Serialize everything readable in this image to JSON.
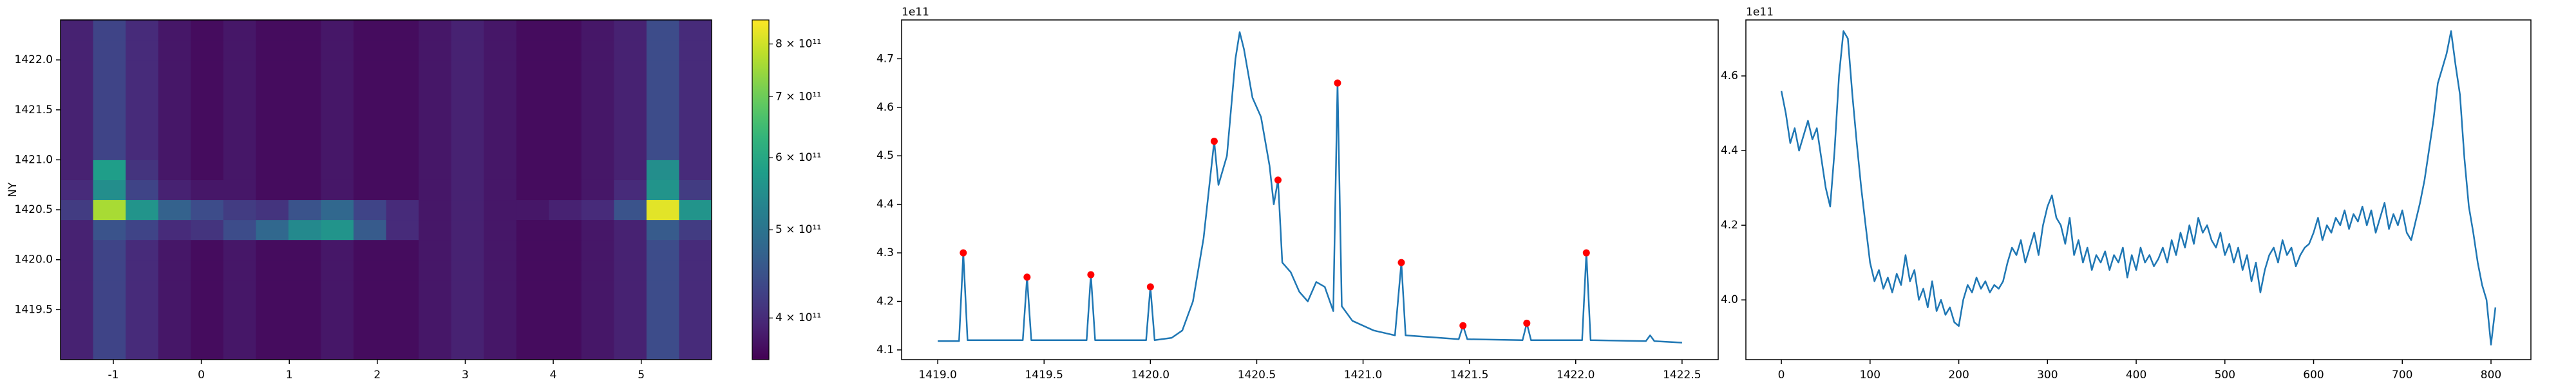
{
  "chart_data": [
    {
      "type": "heatmap",
      "ylabel": "NY",
      "x_edges": [
        -1.6,
        -1.23,
        -0.86,
        -0.49,
        -0.12,
        0.25,
        0.62,
        0.99,
        1.36,
        1.73,
        2.1,
        2.47,
        2.84,
        3.21,
        3.58,
        3.95,
        4.32,
        4.69,
        5.06,
        5.43,
        5.8
      ],
      "y_edges": [
        1419.0,
        1419.2,
        1419.4,
        1419.6,
        1419.8,
        1420.0,
        1420.2,
        1420.4,
        1420.6,
        1420.8,
        1421.0,
        1421.2,
        1421.4,
        1421.6,
        1421.8,
        1422.0,
        1422.2,
        1422.4
      ],
      "z": [
        [
          390000000000.0,
          430000000000.0,
          400000000000.0,
          380000000000.0,
          370000000000.0,
          380000000000.0,
          370000000000.0,
          370000000000.0,
          380000000000.0,
          370000000000.0,
          370000000000.0,
          380000000000.0,
          390000000000.0,
          380000000000.0,
          370000000000.0,
          370000000000.0,
          380000000000.0,
          390000000000.0,
          440000000000.0,
          400000000000.0
        ],
        [
          390000000000.0,
          430000000000.0,
          400000000000.0,
          380000000000.0,
          370000000000.0,
          380000000000.0,
          370000000000.0,
          370000000000.0,
          380000000000.0,
          370000000000.0,
          370000000000.0,
          380000000000.0,
          390000000000.0,
          380000000000.0,
          370000000000.0,
          370000000000.0,
          380000000000.0,
          390000000000.0,
          440000000000.0,
          400000000000.0
        ],
        [
          390000000000.0,
          430000000000.0,
          400000000000.0,
          380000000000.0,
          370000000000.0,
          380000000000.0,
          370000000000.0,
          370000000000.0,
          380000000000.0,
          370000000000.0,
          370000000000.0,
          380000000000.0,
          390000000000.0,
          380000000000.0,
          370000000000.0,
          370000000000.0,
          380000000000.0,
          390000000000.0,
          440000000000.0,
          400000000000.0
        ],
        [
          390000000000.0,
          430000000000.0,
          400000000000.0,
          380000000000.0,
          370000000000.0,
          380000000000.0,
          370000000000.0,
          370000000000.0,
          380000000000.0,
          370000000000.0,
          370000000000.0,
          380000000000.0,
          390000000000.0,
          380000000000.0,
          370000000000.0,
          370000000000.0,
          380000000000.0,
          390000000000.0,
          440000000000.0,
          400000000000.0
        ],
        [
          390000000000.0,
          430000000000.0,
          400000000000.0,
          380000000000.0,
          370000000000.0,
          380000000000.0,
          370000000000.0,
          370000000000.0,
          380000000000.0,
          370000000000.0,
          370000000000.0,
          380000000000.0,
          390000000000.0,
          380000000000.0,
          370000000000.0,
          370000000000.0,
          380000000000.0,
          390000000000.0,
          440000000000.0,
          400000000000.0
        ],
        [
          390000000000.0,
          430000000000.0,
          400000000000.0,
          380000000000.0,
          370000000000.0,
          380000000000.0,
          370000000000.0,
          370000000000.0,
          380000000000.0,
          370000000000.0,
          370000000000.0,
          380000000000.0,
          390000000000.0,
          380000000000.0,
          370000000000.0,
          370000000000.0,
          380000000000.0,
          390000000000.0,
          440000000000.0,
          400000000000.0
        ],
        [
          390000000000.0,
          450000000000.0,
          430000000000.0,
          400000000000.0,
          410000000000.0,
          440000000000.0,
          480000000000.0,
          540000000000.0,
          560000000000.0,
          460000000000.0,
          400000000000.0,
          380000000000.0,
          390000000000.0,
          380000000000.0,
          370000000000.0,
          370000000000.0,
          380000000000.0,
          390000000000.0,
          460000000000.0,
          420000000000.0
        ],
        [
          420000000000.0,
          760000000000.0,
          560000000000.0,
          470000000000.0,
          440000000000.0,
          420000000000.0,
          410000000000.0,
          450000000000.0,
          480000000000.0,
          430000000000.0,
          400000000000.0,
          380000000000.0,
          390000000000.0,
          380000000000.0,
          380000000000.0,
          390000000000.0,
          400000000000.0,
          450000000000.0,
          820000000000.0,
          560000000000.0
        ],
        [
          400000000000.0,
          550000000000.0,
          430000000000.0,
          390000000000.0,
          380000000000.0,
          380000000000.0,
          370000000000.0,
          370000000000.0,
          380000000000.0,
          370000000000.0,
          370000000000.0,
          380000000000.0,
          390000000000.0,
          380000000000.0,
          370000000000.0,
          370000000000.0,
          380000000000.0,
          400000000000.0,
          560000000000.0,
          420000000000.0
        ],
        [
          390000000000.0,
          580000000000.0,
          410000000000.0,
          380000000000.0,
          370000000000.0,
          380000000000.0,
          370000000000.0,
          370000000000.0,
          380000000000.0,
          370000000000.0,
          370000000000.0,
          380000000000.0,
          390000000000.0,
          380000000000.0,
          370000000000.0,
          370000000000.0,
          380000000000.0,
          390000000000.0,
          550000000000.0,
          400000000000.0
        ],
        [
          390000000000.0,
          430000000000.0,
          400000000000.0,
          380000000000.0,
          370000000000.0,
          380000000000.0,
          370000000000.0,
          370000000000.0,
          380000000000.0,
          370000000000.0,
          370000000000.0,
          380000000000.0,
          390000000000.0,
          380000000000.0,
          370000000000.0,
          370000000000.0,
          380000000000.0,
          390000000000.0,
          440000000000.0,
          400000000000.0
        ],
        [
          390000000000.0,
          430000000000.0,
          400000000000.0,
          380000000000.0,
          370000000000.0,
          380000000000.0,
          370000000000.0,
          370000000000.0,
          380000000000.0,
          370000000000.0,
          370000000000.0,
          380000000000.0,
          390000000000.0,
          380000000000.0,
          370000000000.0,
          370000000000.0,
          380000000000.0,
          390000000000.0,
          440000000000.0,
          400000000000.0
        ],
        [
          390000000000.0,
          430000000000.0,
          400000000000.0,
          380000000000.0,
          370000000000.0,
          380000000000.0,
          370000000000.0,
          370000000000.0,
          380000000000.0,
          370000000000.0,
          370000000000.0,
          380000000000.0,
          390000000000.0,
          380000000000.0,
          370000000000.0,
          370000000000.0,
          380000000000.0,
          390000000000.0,
          440000000000.0,
          400000000000.0
        ],
        [
          390000000000.0,
          430000000000.0,
          400000000000.0,
          380000000000.0,
          370000000000.0,
          380000000000.0,
          370000000000.0,
          370000000000.0,
          380000000000.0,
          370000000000.0,
          370000000000.0,
          380000000000.0,
          390000000000.0,
          380000000000.0,
          370000000000.0,
          370000000000.0,
          380000000000.0,
          390000000000.0,
          440000000000.0,
          400000000000.0
        ],
        [
          390000000000.0,
          430000000000.0,
          400000000000.0,
          380000000000.0,
          370000000000.0,
          380000000000.0,
          370000000000.0,
          370000000000.0,
          380000000000.0,
          370000000000.0,
          370000000000.0,
          380000000000.0,
          390000000000.0,
          380000000000.0,
          370000000000.0,
          370000000000.0,
          380000000000.0,
          390000000000.0,
          440000000000.0,
          400000000000.0
        ],
        [
          390000000000.0,
          430000000000.0,
          400000000000.0,
          380000000000.0,
          370000000000.0,
          380000000000.0,
          370000000000.0,
          370000000000.0,
          380000000000.0,
          370000000000.0,
          370000000000.0,
          380000000000.0,
          390000000000.0,
          380000000000.0,
          370000000000.0,
          370000000000.0,
          380000000000.0,
          390000000000.0,
          440000000000.0,
          400000000000.0
        ],
        [
          390000000000.0,
          430000000000.0,
          400000000000.0,
          380000000000.0,
          370000000000.0,
          380000000000.0,
          370000000000.0,
          370000000000.0,
          380000000000.0,
          370000000000.0,
          370000000000.0,
          380000000000.0,
          390000000000.0,
          380000000000.0,
          370000000000.0,
          370000000000.0,
          380000000000.0,
          390000000000.0,
          440000000000.0,
          400000000000.0
        ]
      ],
      "xlim": [
        -1.6,
        5.8
      ],
      "ylim": [
        1419.0,
        1422.4
      ],
      "xticks": [
        -1,
        0,
        1,
        2,
        3,
        4,
        5
      ],
      "yticks": [
        1419.5,
        {
          "value": 1420.0,
          "label": "1420.0"
        },
        1420.5,
        {
          "value": 1421.0,
          "label": "1421.0"
        },
        1421.5,
        {
          "value": 1422.0,
          "label": "1422.0"
        }
      ],
      "colormap": "viridis",
      "color_log": true,
      "clim": [
        360000000000.0,
        850000000000.0
      ],
      "cticks": [
        {
          "value": 400000000000.0,
          "label": "4 × 10¹¹"
        },
        {
          "value": 500000000000.0,
          "label": "5 × 10¹¹"
        },
        {
          "value": 600000000000.0,
          "label": "6 × 10¹¹"
        },
        {
          "value": 700000000000.0,
          "label": "7 × 10¹¹"
        },
        {
          "value": 800000000000.0,
          "label": "8 × 10¹¹"
        }
      ]
    },
    {
      "type": "line",
      "offset_text": "1e11",
      "x": [
        1419.0,
        1419.1,
        1419.12,
        1419.14,
        1419.4,
        1419.42,
        1419.44,
        1419.7,
        1419.72,
        1419.74,
        1419.98,
        1420.0,
        1420.02,
        1420.1,
        1420.15,
        1420.2,
        1420.25,
        1420.3,
        1420.32,
        1420.36,
        1420.4,
        1420.42,
        1420.44,
        1420.48,
        1420.52,
        1420.56,
        1420.58,
        1420.6,
        1420.62,
        1420.66,
        1420.7,
        1420.74,
        1420.78,
        1420.82,
        1420.86,
        1420.88,
        1420.9,
        1420.95,
        1421.05,
        1421.15,
        1421.18,
        1421.2,
        1421.45,
        1421.47,
        1421.49,
        1421.75,
        1421.77,
        1421.79,
        1422.03,
        1422.05,
        1422.07,
        1422.33,
        1422.35,
        1422.37,
        1422.5
      ],
      "series": [
        {
          "color": "#1f77b4",
          "values": [
            4.118,
            4.118,
            4.3,
            4.12,
            4.12,
            4.25,
            4.12,
            4.12,
            4.255,
            4.12,
            4.12,
            4.23,
            4.12,
            4.125,
            4.14,
            4.2,
            4.33,
            4.53,
            4.44,
            4.5,
            4.7,
            4.755,
            4.72,
            4.62,
            4.58,
            4.48,
            4.4,
            4.45,
            4.28,
            4.26,
            4.22,
            4.2,
            4.24,
            4.23,
            4.18,
            4.65,
            4.19,
            4.16,
            4.14,
            4.13,
            4.28,
            4.13,
            4.122,
            4.15,
            4.122,
            4.12,
            4.155,
            4.12,
            4.12,
            4.3,
            4.12,
            4.118,
            4.13,
            4.118,
            4.115
          ]
        }
      ],
      "peaks": {
        "color": "#ff0000",
        "x": [
          1419.12,
          1419.42,
          1419.72,
          1420.0,
          1420.3,
          1420.6,
          1420.88,
          1421.18,
          1421.47,
          1421.77,
          1422.05
        ],
        "values": [
          4.3,
          4.25,
          4.255,
          4.23,
          4.53,
          4.45,
          4.65,
          4.28,
          4.15,
          4.155,
          4.3
        ]
      },
      "xlim": [
        1418.83,
        1422.67
      ],
      "ylim": [
        4.08,
        4.78
      ],
      "xticks": [
        {
          "value": 1419.0,
          "label": "1419.0"
        },
        1419.5,
        {
          "value": 1420.0,
          "label": "1420.0"
        },
        1420.5,
        {
          "value": 1421.0,
          "label": "1421.0"
        },
        1421.5,
        {
          "value": 1422.0,
          "label": "1422.0"
        },
        1422.5
      ],
      "yticks": [
        4.1,
        4.2,
        4.3,
        4.4,
        4.5,
        4.6,
        4.7
      ]
    },
    {
      "type": "line",
      "offset_text": "1e11",
      "x": [
        0,
        5,
        10,
        15,
        20,
        25,
        30,
        35,
        40,
        45,
        50,
        55,
        60,
        65,
        70,
        75,
        80,
        85,
        90,
        95,
        100,
        105,
        110,
        115,
        120,
        125,
        130,
        135,
        140,
        145,
        150,
        155,
        160,
        165,
        170,
        175,
        180,
        185,
        190,
        195,
        200,
        205,
        210,
        215,
        220,
        225,
        230,
        235,
        240,
        245,
        250,
        255,
        260,
        265,
        270,
        275,
        280,
        285,
        290,
        295,
        300,
        305,
        310,
        315,
        320,
        325,
        330,
        335,
        340,
        345,
        350,
        355,
        360,
        365,
        370,
        375,
        380,
        385,
        390,
        395,
        400,
        405,
        410,
        415,
        420,
        425,
        430,
        435,
        440,
        445,
        450,
        455,
        460,
        465,
        470,
        475,
        480,
        485,
        490,
        495,
        500,
        505,
        510,
        515,
        520,
        525,
        530,
        535,
        540,
        545,
        550,
        555,
        560,
        565,
        570,
        575,
        580,
        585,
        590,
        595,
        600,
        605,
        610,
        615,
        620,
        625,
        630,
        635,
        640,
        645,
        650,
        655,
        660,
        665,
        670,
        675,
        680,
        685,
        690,
        695,
        700,
        705,
        710,
        715,
        720,
        725,
        730,
        735,
        740,
        745,
        750,
        755,
        760,
        765,
        770,
        775,
        780,
        785,
        790,
        795,
        800,
        805
      ],
      "series": [
        {
          "color": "#1f77b4",
          "values": [
            4.56,
            4.5,
            4.42,
            4.46,
            4.4,
            4.44,
            4.48,
            4.43,
            4.46,
            4.38,
            4.3,
            4.25,
            4.4,
            4.6,
            4.72,
            4.7,
            4.55,
            4.42,
            4.3,
            4.2,
            4.1,
            4.05,
            4.08,
            4.03,
            4.06,
            4.02,
            4.07,
            4.04,
            4.12,
            4.05,
            4.08,
            4.0,
            4.03,
            3.98,
            4.05,
            3.97,
            4.0,
            3.96,
            3.98,
            3.94,
            3.93,
            4.0,
            4.04,
            4.02,
            4.06,
            4.03,
            4.05,
            4.02,
            4.04,
            4.03,
            4.05,
            4.1,
            4.14,
            4.12,
            4.16,
            4.1,
            4.14,
            4.18,
            4.12,
            4.2,
            4.25,
            4.28,
            4.22,
            4.2,
            4.15,
            4.22,
            4.12,
            4.16,
            4.1,
            4.14,
            4.08,
            4.12,
            4.1,
            4.13,
            4.08,
            4.12,
            4.1,
            4.14,
            4.06,
            4.12,
            4.08,
            4.14,
            4.1,
            4.12,
            4.09,
            4.11,
            4.14,
            4.1,
            4.16,
            4.12,
            4.18,
            4.14,
            4.2,
            4.15,
            4.22,
            4.18,
            4.2,
            4.16,
            4.14,
            4.18,
            4.12,
            4.15,
            4.1,
            4.14,
            4.08,
            4.12,
            4.05,
            4.1,
            4.02,
            4.08,
            4.12,
            4.14,
            4.1,
            4.16,
            4.12,
            4.14,
            4.09,
            4.12,
            4.14,
            4.15,
            4.18,
            4.22,
            4.16,
            4.2,
            4.18,
            4.22,
            4.2,
            4.24,
            4.19,
            4.23,
            4.21,
            4.25,
            4.2,
            4.24,
            4.18,
            4.22,
            4.26,
            4.19,
            4.23,
            4.2,
            4.24,
            4.18,
            4.16,
            4.21,
            4.26,
            4.32,
            4.4,
            4.48,
            4.58,
            4.62,
            4.66,
            4.72,
            4.63,
            4.55,
            4.38,
            4.25,
            4.18,
            4.1,
            4.04,
            4.0,
            3.88,
            3.98
          ]
        }
      ],
      "xlim": [
        -40,
        845
      ],
      "ylim": [
        3.84,
        4.75
      ],
      "xticks": [
        0,
        100,
        200,
        300,
        400,
        500,
        600,
        700,
        800
      ],
      "yticks": [
        {
          "value": 4.0,
          "label": "4.0"
        },
        4.2,
        4.4,
        4.6
      ]
    }
  ]
}
